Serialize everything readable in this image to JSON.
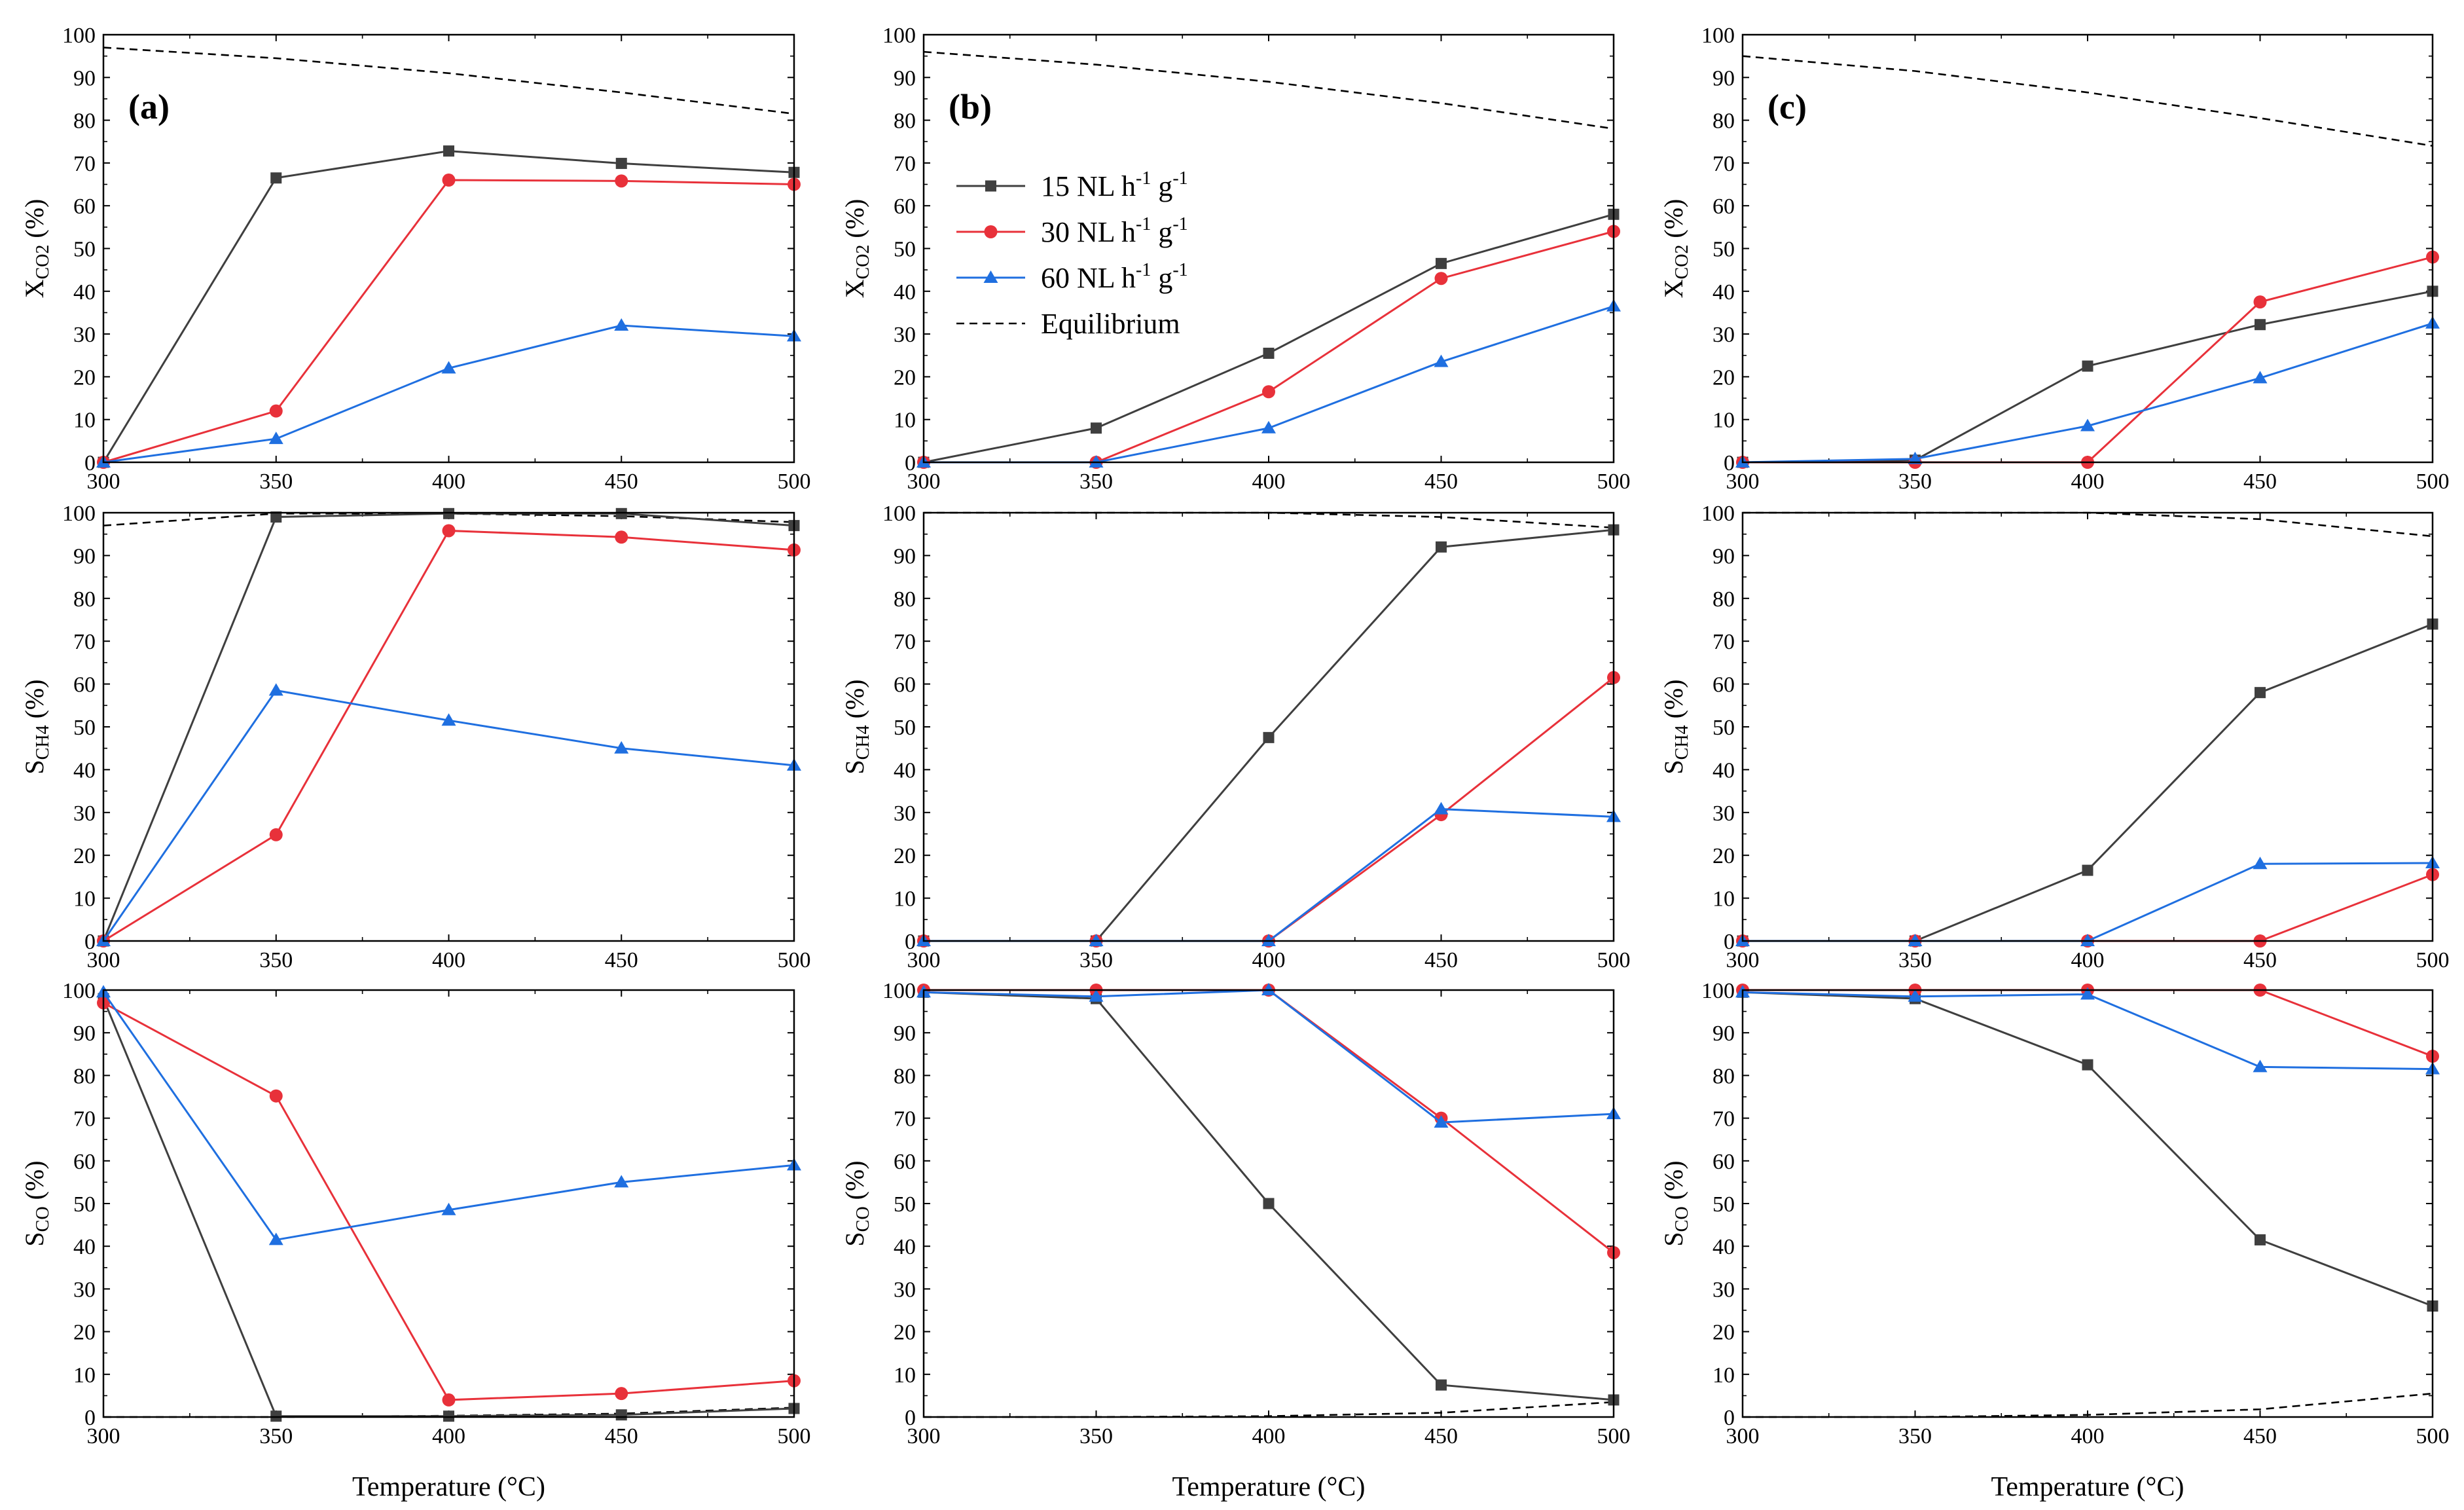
{
  "colors": {
    "15": "#3f3f3f",
    "30": "#e8313a",
    "60": "#1f6fe0",
    "eq": "#000000"
  },
  "legend": {
    "items": [
      {
        "key": "15",
        "text": "15 NL h",
        "sup1": "-1",
        "mid": " g",
        "sup2": "-1",
        "marker": "square"
      },
      {
        "key": "30",
        "text": "30 NL h",
        "sup1": "-1",
        "mid": " g",
        "sup2": "-1",
        "marker": "circle"
      },
      {
        "key": "60",
        "text": "60 NL h",
        "sup1": "-1",
        "mid": " g",
        "sup2": "-1",
        "marker": "triangle"
      },
      {
        "key": "eq",
        "text": "Equilibrium",
        "marker": "dashed"
      }
    ]
  },
  "chart_data": {
    "type": "line",
    "x": [
      300,
      350,
      400,
      450,
      500
    ],
    "xlim": [
      300,
      500
    ],
    "ylim": [
      0,
      100
    ],
    "xticks": [
      "300",
      "350",
      "400",
      "450",
      "500"
    ],
    "yticks": [
      "0",
      "10",
      "20",
      "30",
      "40",
      "50",
      "60",
      "70",
      "80",
      "90",
      "100"
    ],
    "xlabel": "Temperature (°C)",
    "ylabels": [
      {
        "main": "X",
        "sub": "CO2",
        "tail": " (%)"
      },
      {
        "main": "S",
        "sub": "CH4",
        "tail": " (%)"
      },
      {
        "main": "S",
        "sub": "CO",
        "tail": " (%)"
      }
    ],
    "panel_tags": [
      "(a)",
      "(b)",
      "(c)"
    ],
    "panels": [
      {
        "col": 0,
        "row": 0,
        "series": {
          "15": [
            0,
            66.5,
            72.8,
            69.9,
            67.8
          ],
          "30": [
            0,
            12,
            66,
            65.8,
            65
          ],
          "60": [
            0,
            5.5,
            22,
            32,
            29.5
          ],
          "eq": [
            97,
            94.5,
            91,
            86.5,
            81.5
          ]
        }
      },
      {
        "col": 0,
        "row": 1,
        "series": {
          "15": [
            0,
            99,
            99.8,
            99.8,
            97
          ],
          "30": [
            0,
            24.8,
            95.8,
            94.3,
            91.3
          ],
          "60": [
            0,
            58.5,
            51.5,
            45,
            41
          ],
          "eq": [
            97,
            99.8,
            99.8,
            99.2,
            97.8
          ]
        }
      },
      {
        "col": 0,
        "row": 2,
        "series": {
          "15": [
            98,
            0.2,
            0.2,
            0.5,
            2
          ],
          "30": [
            97,
            75.2,
            4,
            5.5,
            8.5
          ],
          "60": [
            99.5,
            41.5,
            48.5,
            55,
            59
          ],
          "eq": [
            0,
            0,
            0.3,
            0.8,
            2.2
          ]
        }
      },
      {
        "col": 1,
        "row": 0,
        "series": {
          "15": [
            0,
            8,
            25.5,
            46.5,
            58
          ],
          "30": [
            0,
            0,
            16.5,
            43,
            54
          ],
          "60": [
            0,
            0,
            8,
            23.5,
            36.5
          ],
          "eq": [
            96,
            93,
            89,
            84,
            78
          ]
        }
      },
      {
        "col": 1,
        "row": 1,
        "series": {
          "15": [
            0,
            0,
            47.5,
            92,
            96
          ],
          "30": [
            0,
            0,
            0,
            29.5,
            61.5
          ],
          "60": [
            0,
            0,
            0,
            30.8,
            29
          ],
          "eq": [
            100,
            100,
            100,
            99,
            96.5
          ]
        }
      },
      {
        "col": 1,
        "row": 2,
        "series": {
          "15": [
            99.5,
            98,
            50,
            7.5,
            4
          ],
          "30": [
            100,
            100,
            100,
            70,
            38.5
          ],
          "60": [
            99.5,
            98.5,
            100,
            69,
            71
          ],
          "eq": [
            0,
            0,
            0.2,
            1,
            3.5
          ]
        }
      },
      {
        "col": 2,
        "row": 0,
        "series": {
          "15": [
            0,
            0.5,
            22.5,
            32.2,
            40
          ],
          "30": [
            0,
            0,
            0,
            37.5,
            48
          ],
          "60": [
            0,
            0.8,
            8.5,
            19.7,
            32.5
          ],
          "eq": [
            95,
            91.5,
            86.5,
            80.5,
            74
          ]
        }
      },
      {
        "col": 2,
        "row": 1,
        "series": {
          "15": [
            0,
            0,
            16.5,
            58,
            74
          ],
          "30": [
            0,
            0,
            0,
            0,
            15.5
          ],
          "60": [
            0,
            0,
            0,
            18,
            18.2
          ],
          "eq": [
            100,
            100,
            100,
            98.5,
            94.5
          ]
        }
      },
      {
        "col": 2,
        "row": 2,
        "series": {
          "15": [
            99.5,
            98,
            82.5,
            41.5,
            26
          ],
          "30": [
            100,
            100,
            100,
            100,
            84.5
          ],
          "60": [
            99.5,
            98.5,
            99,
            82,
            81.5
          ],
          "eq": [
            0,
            0,
            0.5,
            1.8,
            5.5
          ]
        }
      }
    ]
  }
}
